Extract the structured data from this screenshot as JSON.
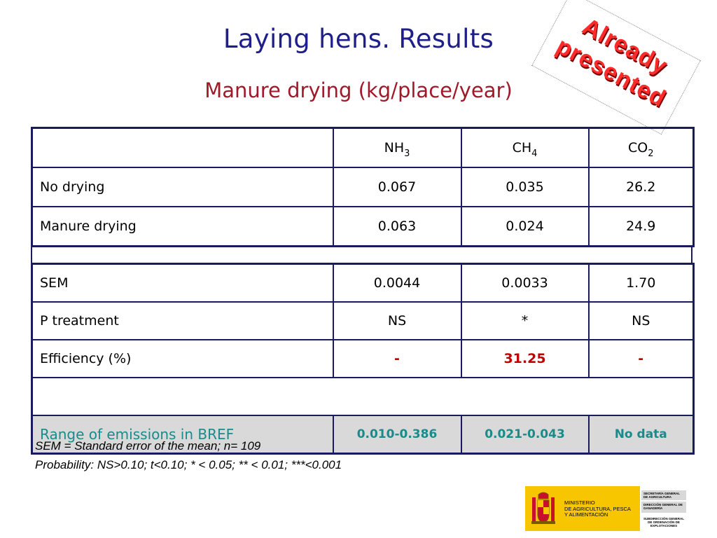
{
  "slide": {
    "title": "Laying hens. Results",
    "subtitle": "Manure drying (kg/place/year)"
  },
  "stamp": {
    "line1": "Already",
    "line2": "presented"
  },
  "table": {
    "header": {
      "col1_main": "NH",
      "col1_sub": "3",
      "col2_main": "CH",
      "col2_sub": "4",
      "col3_main": "CO",
      "col3_sub": "2"
    },
    "rows": [
      {
        "label": "No drying",
        "v1": "0.067",
        "v2": "0.035",
        "v3": "26.2"
      },
      {
        "label": "Manure drying",
        "v1": "0.063",
        "v2": "0.024",
        "v3": "24.9"
      }
    ],
    "stats": [
      {
        "label": "SEM",
        "v1": "0.0044",
        "v2": "0.0033",
        "v3": "1.70"
      },
      {
        "label": "P treatment",
        "v1": "NS",
        "v2": "*",
        "v3": "NS"
      },
      {
        "label": "Efficiency (%)",
        "v1": "-",
        "v2": "31.25",
        "v3": "-"
      }
    ],
    "bref": {
      "label": "Range of emissions in BREF",
      "v1": "0.010-0.386",
      "v2": "0.021-0.043",
      "v3": "No data"
    }
  },
  "notes": {
    "line1": "SEM = Standard error of the mean; n= 109",
    "line2": "Probability: NS>0.10; t<0.10; * < 0.05; ** < 0.01; ***<0.001"
  },
  "logo": {
    "ministry_line1": "MINISTERIO",
    "ministry_line2": "DE AGRICULTURA, PESCA",
    "ministry_line3": "Y ALIMENTACIÓN",
    "right1": "SECRETARÍA GENERAL DE AGRICULTURA",
    "right2": "DIRECCIÓN GENERAL DE GANADERÍA",
    "right3": "SUBDIRECCIÓN GENERAL DE ORDENACIÓN DE EXPLOTACIONES"
  },
  "colors": {
    "title": "#1f1f8a",
    "subtitle": "#a01929",
    "stamp": "#ff2a2a",
    "border": "#1a1a5e",
    "bref_text": "#1a8a8a"
  }
}
